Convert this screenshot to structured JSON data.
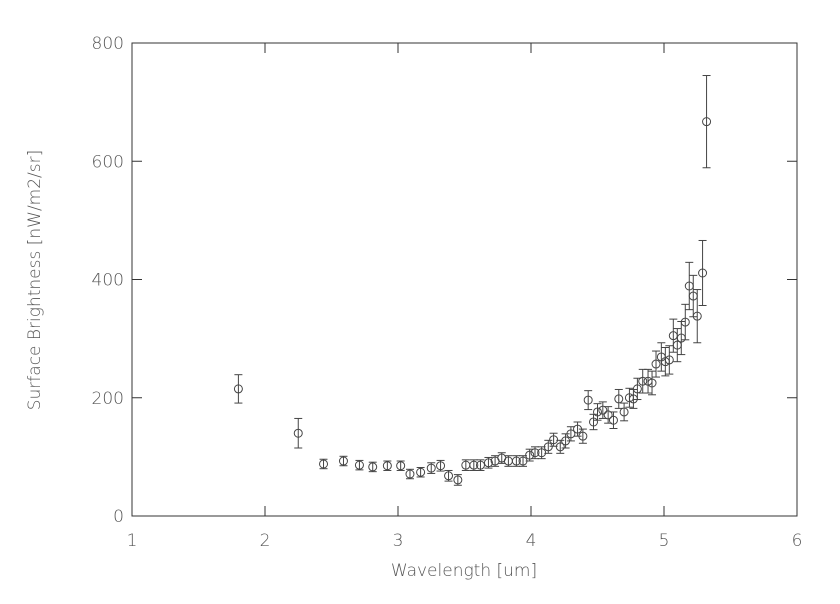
{
  "chart_data": {
    "type": "scatter",
    "xlabel": "Wavelength [um]",
    "ylabel": "Surface Brightness [nW/m2/sr]",
    "x": [
      1.8,
      2.25,
      2.44,
      2.59,
      2.71,
      2.81,
      2.92,
      3.02,
      3.09,
      3.17,
      3.25,
      3.32,
      3.38,
      3.45,
      3.51,
      3.57,
      3.62,
      3.68,
      3.73,
      3.78,
      3.83,
      3.89,
      3.94,
      3.99,
      4.03,
      4.08,
      4.13,
      4.17,
      4.22,
      4.26,
      4.3,
      4.35,
      4.39,
      4.43,
      4.47,
      4.5,
      4.54,
      4.58,
      4.62,
      4.66,
      4.7,
      4.74,
      4.77,
      4.8,
      4.84,
      4.88,
      4.91,
      4.94,
      4.98,
      5.01,
      5.04,
      5.07,
      5.1,
      5.13,
      5.16,
      5.19,
      5.22,
      5.25,
      5.29,
      5.32
    ],
    "values": [
      215,
      140,
      88,
      93,
      86,
      83,
      85,
      85,
      71,
      74,
      81,
      85,
      68,
      61,
      86,
      86,
      86,
      90,
      93,
      98,
      93,
      93,
      93,
      103,
      107,
      107,
      117,
      129,
      117,
      127,
      139,
      147,
      135,
      196,
      159,
      176,
      179,
      171,
      162,
      198,
      176,
      200,
      198,
      215,
      228,
      228,
      225,
      257,
      269,
      261,
      264,
      305,
      289,
      301,
      328,
      389,
      372,
      338,
      411,
      667
    ],
    "errors": [
      24,
      25,
      8,
      8,
      8,
      8,
      8,
      8,
      8,
      8,
      9,
      9,
      9,
      9,
      9,
      9,
      9,
      9,
      9,
      9,
      9,
      9,
      9,
      10,
      10,
      10,
      11,
      11,
      11,
      12,
      12,
      12,
      12,
      16,
      13,
      14,
      14,
      14,
      14,
      16,
      15,
      16,
      16,
      18,
      20,
      20,
      20,
      22,
      24,
      24,
      24,
      28,
      28,
      28,
      30,
      40,
      35,
      45,
      55,
      78
    ],
    "color": "#444444",
    "xlim": [
      1,
      6
    ],
    "xticks": [
      1,
      2,
      3,
      4,
      5,
      6
    ],
    "ylim": [
      0,
      800
    ],
    "yticks": [
      0,
      200,
      400,
      600,
      800
    ]
  }
}
